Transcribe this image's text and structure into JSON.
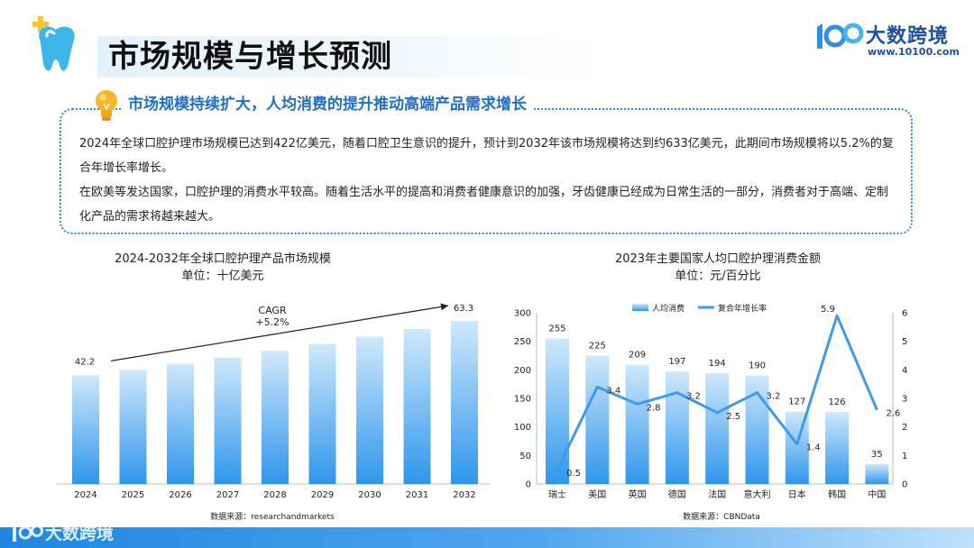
{
  "header": {
    "title": "市场规模与增长预测",
    "brand_name": "大数跨境",
    "brand_url": "www.10100.com"
  },
  "summary": {
    "heading": "市场规模持续扩大，人均消费的提升推动高端产品需求增长",
    "paragraph1": "2024年全球口腔护理市场规模已达到422亿美元，随着口腔卫生意识的提升，预计到2032年该市场规模将达到约633亿美元，此期间市场规模将以5.2%的复合年增长率增长。",
    "paragraph2": "在欧美等发达国家，口腔护理的消费水平较高。随着生活水平的提高和消费者健康意识的加强，牙齿健康已经成为日常生活的一部分，消费者对于高端、定制化产品的需求将越来越大。"
  },
  "footer": {
    "brand_name": "大数跨境"
  },
  "colors": {
    "accent": "#2e86de",
    "bar_top": "#cfe8fb",
    "bar_bottom": "#2f96ec",
    "line": "#3d9be9",
    "title_blue": "#1f6fc7"
  },
  "chart_data": [
    {
      "type": "bar",
      "title": "2024-2032年全球口腔护理产品市场规模",
      "subtitle": "单位：十亿美元",
      "categories": [
        "2024",
        "2025",
        "2026",
        "2027",
        "2028",
        "2029",
        "2030",
        "2031",
        "2032"
      ],
      "values": [
        42.2,
        44.4,
        46.7,
        49.1,
        51.7,
        54.4,
        57.2,
        60.2,
        63.3
      ],
      "data_labels": {
        "2024": "42.2",
        "2032": "63.3"
      },
      "annotation_line1": "CAGR",
      "annotation_line2": "+5.2%",
      "ylim": [
        0,
        70
      ],
      "grid": false,
      "source": "数据来源：researchandmarkets"
    },
    {
      "type": "bar",
      "title": "2023年主要国家人均口腔护理消费金额",
      "subtitle": "单位：元/百分比",
      "categories": [
        "瑞士",
        "美国",
        "英国",
        "德国",
        "法国",
        "意大利",
        "日本",
        "韩国",
        "中国"
      ],
      "series": [
        {
          "name": "人均消费",
          "type": "bar",
          "axis": "left",
          "values": [
            255,
            225,
            209,
            197,
            194,
            190,
            127,
            126,
            35
          ]
        },
        {
          "name": "复合年增长率",
          "type": "line",
          "axis": "right",
          "values": [
            0.5,
            3.4,
            2.8,
            3.2,
            2.5,
            3.2,
            1.4,
            5.9,
            2.6
          ]
        }
      ],
      "left_ylim": [
        0,
        300
      ],
      "left_ticks": [
        0,
        50,
        100,
        150,
        200,
        250,
        300
      ],
      "right_ylim": [
        0,
        6
      ],
      "right_ticks": [
        0,
        1,
        2,
        3,
        4,
        5,
        6
      ],
      "legend": "top",
      "grid": false,
      "source": "数据来源：CBNData"
    }
  ]
}
